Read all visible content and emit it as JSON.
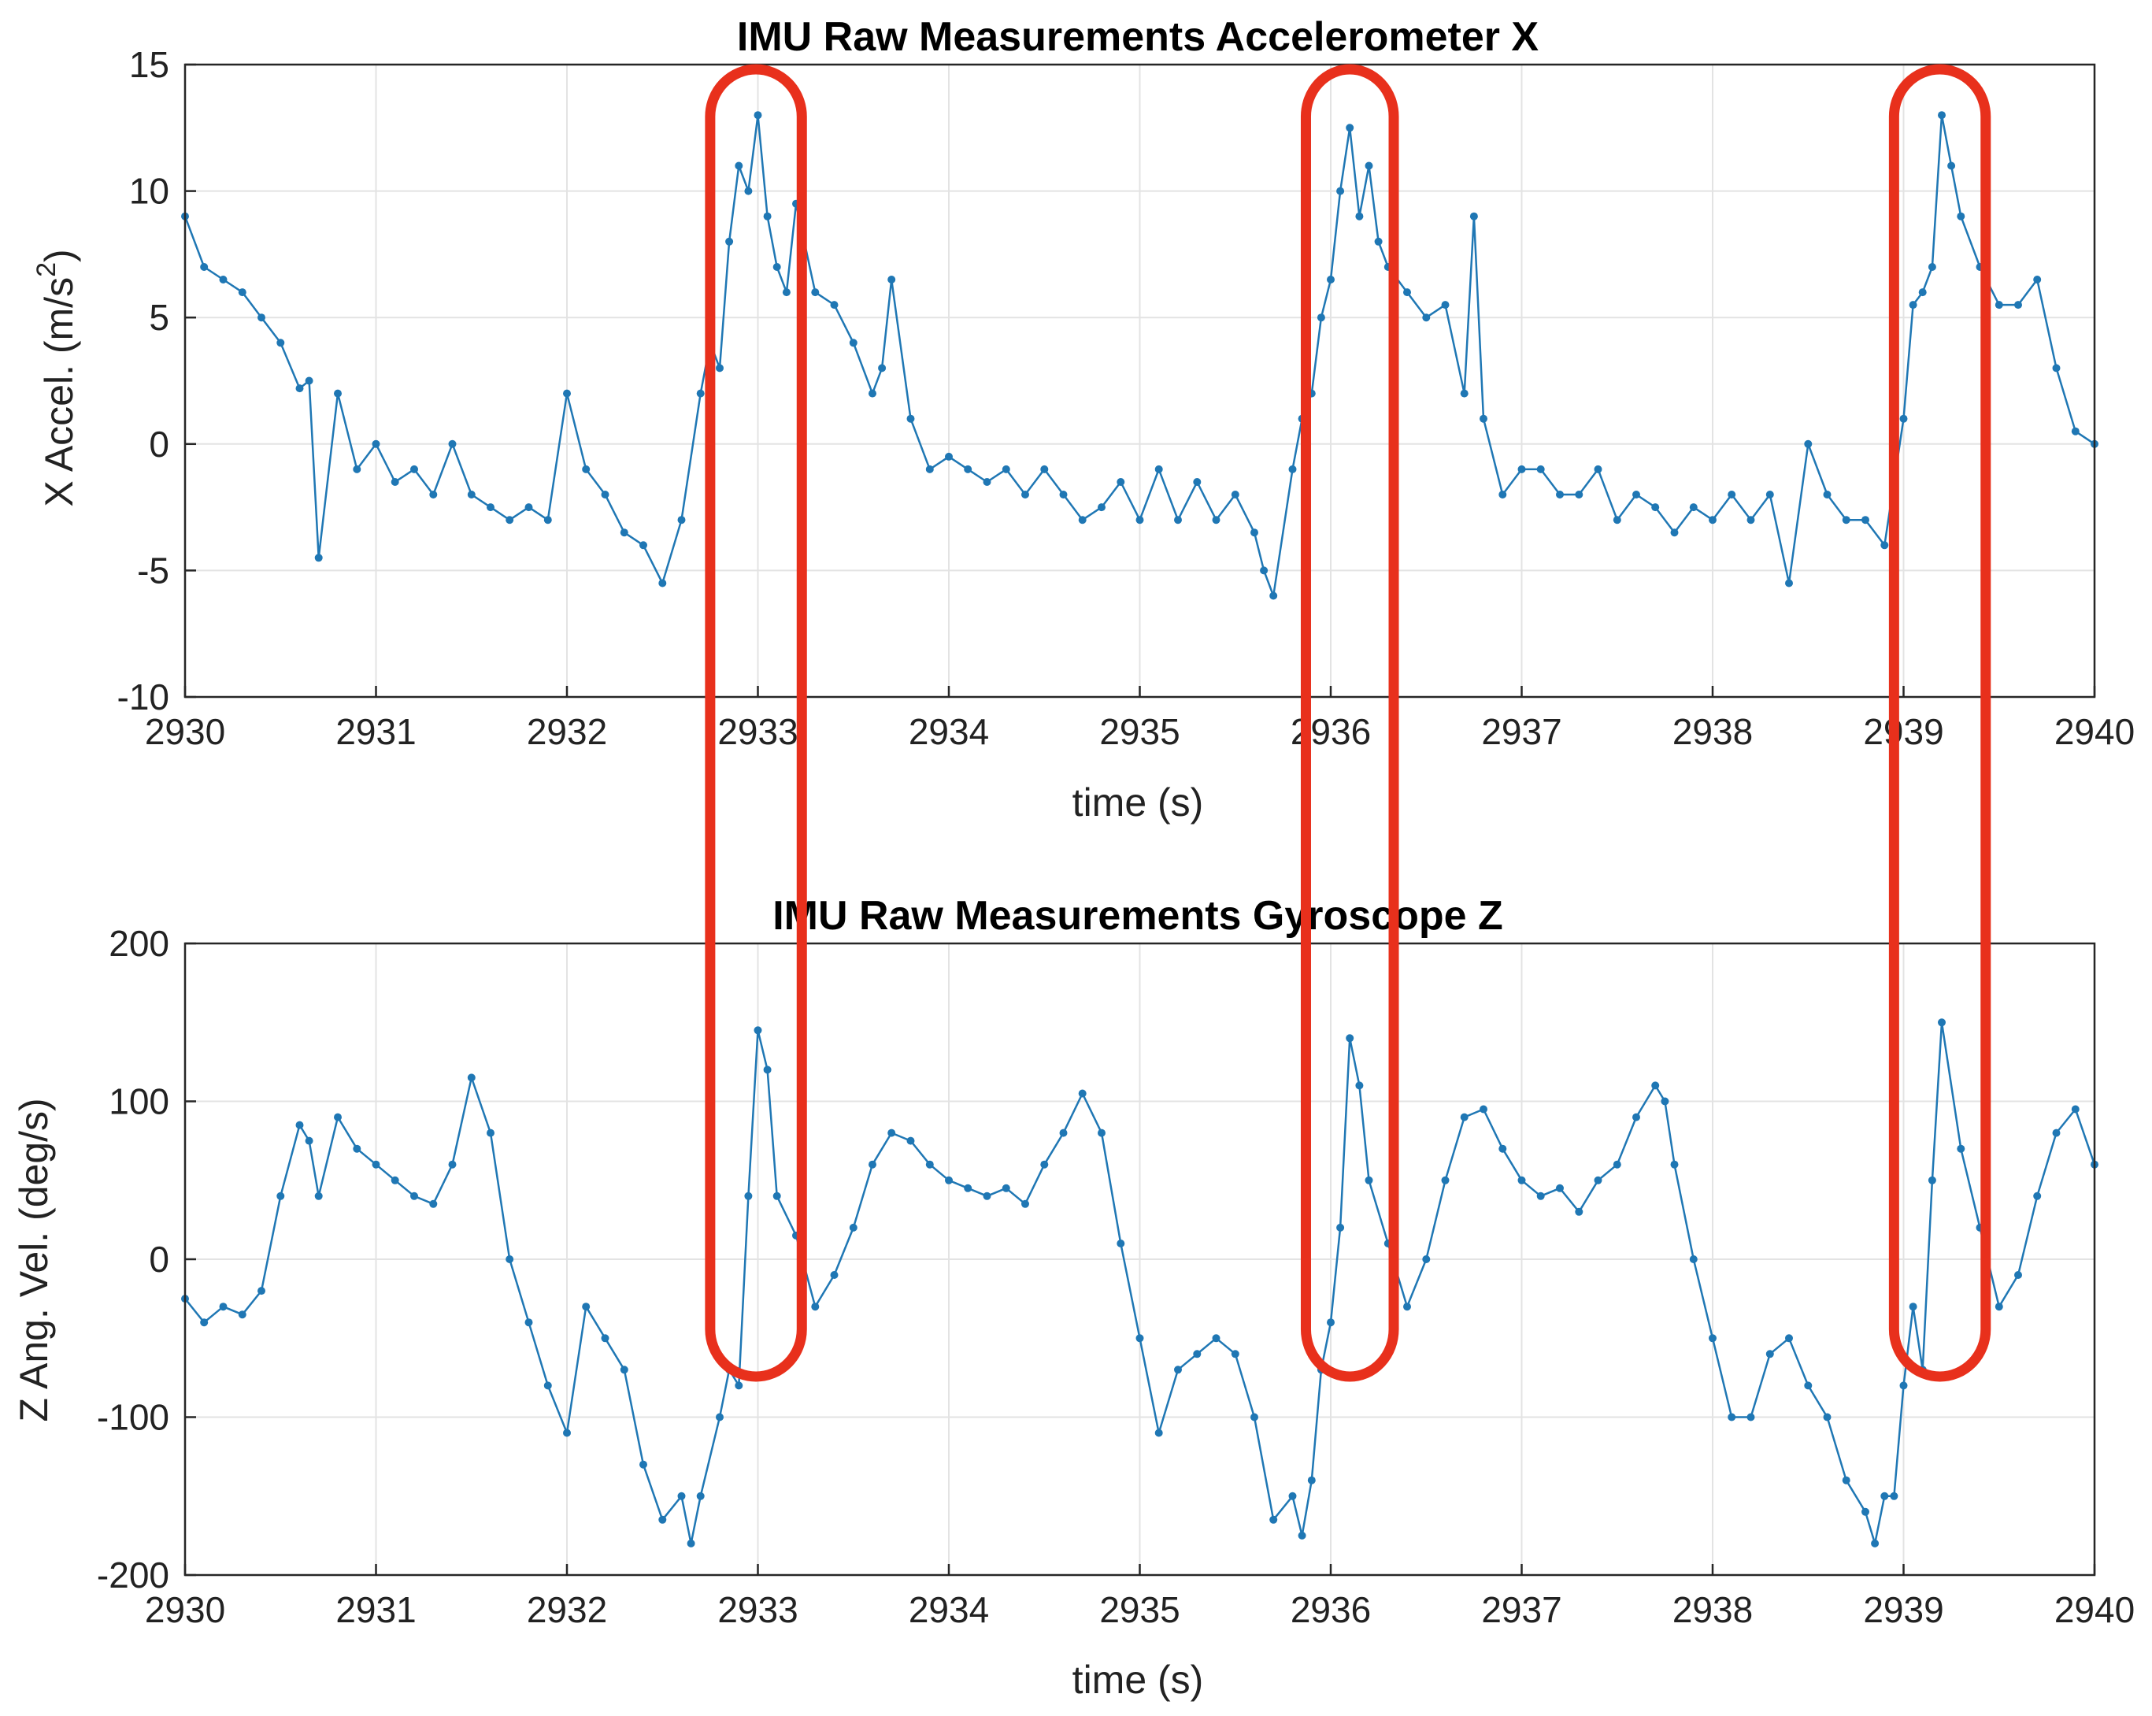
{
  "colors": {
    "series": "#1f77b4",
    "highlight": "#e8301c"
  },
  "chart_data": [
    {
      "type": "line",
      "title": "IMU Raw Measurements Accelerometer X",
      "xlabel": "time (s)",
      "ylabel_main": "X Accel. (m/s",
      "ylabel_sup": "2",
      "ylabel_end": ")",
      "xlim": [
        2930,
        2940
      ],
      "ylim": [
        -10,
        15
      ],
      "xticks": [
        2930,
        2931,
        2932,
        2933,
        2934,
        2935,
        2936,
        2937,
        2938,
        2939,
        2940
      ],
      "yticks": [
        -10,
        -5,
        0,
        5,
        10,
        15
      ],
      "grid": true,
      "markers": true,
      "series": [
        {
          "x": [
            2930.0,
            2930.1,
            2930.2,
            2930.3,
            2930.4,
            2930.5,
            2930.6,
            2930.65,
            2930.7,
            2930.8,
            2930.9,
            2931.0,
            2931.1,
            2931.2,
            2931.3,
            2931.4,
            2931.5,
            2931.6,
            2931.7,
            2931.8,
            2931.9,
            2932.0,
            2932.1,
            2932.2,
            2932.3,
            2932.4,
            2932.5,
            2932.6,
            2932.7,
            2932.75,
            2932.8,
            2932.85,
            2932.9,
            2932.95,
            2933.0,
            2933.05,
            2933.1,
            2933.15,
            2933.2,
            2933.3,
            2933.4,
            2933.5,
            2933.6,
            2933.65,
            2933.7,
            2933.8,
            2933.9,
            2934.0,
            2934.1,
            2934.2,
            2934.3,
            2934.4,
            2934.5,
            2934.6,
            2934.7,
            2934.8,
            2934.9,
            2935.0,
            2935.1,
            2935.2,
            2935.3,
            2935.4,
            2935.5,
            2935.6,
            2935.65,
            2935.7,
            2935.8,
            2935.85,
            2935.9,
            2935.95,
            2936.0,
            2936.05,
            2936.1,
            2936.15,
            2936.2,
            2936.25,
            2936.3,
            2936.4,
            2936.5,
            2936.6,
            2936.7,
            2936.75,
            2936.8,
            2936.9,
            2937.0,
            2937.1,
            2937.2,
            2937.3,
            2937.4,
            2937.5,
            2937.6,
            2937.7,
            2937.8,
            2937.9,
            2938.0,
            2938.1,
            2938.2,
            2938.3,
            2938.4,
            2938.5,
            2938.6,
            2938.7,
            2938.8,
            2938.9,
            2939.0,
            2939.05,
            2939.1,
            2939.15,
            2939.2,
            2939.25,
            2939.3,
            2939.4,
            2939.5,
            2939.6,
            2939.7,
            2939.8,
            2939.9,
            2940.0
          ],
          "y": [
            9,
            7,
            6.5,
            6,
            5,
            4,
            2.2,
            2.5,
            -4.5,
            2,
            -1,
            0,
            -1.5,
            -1,
            -2,
            0,
            -2,
            -2.5,
            -3,
            -2.5,
            -3,
            2,
            -1,
            -2,
            -3.5,
            -4,
            -5.5,
            -3,
            2,
            4,
            3,
            8,
            11,
            10,
            13,
            9,
            7,
            6,
            9.5,
            6,
            5.5,
            4,
            2,
            3,
            6.5,
            1,
            -1,
            -0.5,
            -1,
            -1.5,
            -1,
            -2,
            -1,
            -2,
            -3,
            -2.5,
            -1.5,
            -3,
            -1,
            -3,
            -1.5,
            -3,
            -2,
            -3.5,
            -5,
            -6,
            -1,
            1,
            2,
            5,
            6.5,
            10,
            12.5,
            9,
            11,
            8,
            7,
            6,
            5,
            5.5,
            2,
            9,
            1,
            -2,
            -1,
            -1,
            -2,
            -2,
            -1,
            -3,
            -2,
            -2.5,
            -3.5,
            -2.5,
            -3,
            -2,
            -3,
            -2,
            -5.5,
            0,
            -2,
            -3,
            -3,
            -4,
            1,
            5.5,
            6,
            7,
            13,
            11,
            9,
            7,
            5.5,
            5.5,
            6.5,
            3,
            0.5,
            0
          ]
        }
      ]
    },
    {
      "type": "line",
      "title": "IMU Raw Measurements Gyroscope Z",
      "xlabel": "time (s)",
      "ylabel_main": "Z Ang. Vel. (deg/s)",
      "xlim": [
        2930,
        2940
      ],
      "ylim": [
        -200,
        200
      ],
      "xticks": [
        2930,
        2931,
        2932,
        2933,
        2934,
        2935,
        2936,
        2937,
        2938,
        2939,
        2940
      ],
      "yticks": [
        -200,
        -100,
        0,
        100,
        200
      ],
      "grid": true,
      "markers": true,
      "series": [
        {
          "x": [
            2930.0,
            2930.1,
            2930.2,
            2930.3,
            2930.4,
            2930.5,
            2930.6,
            2930.65,
            2930.7,
            2930.8,
            2930.9,
            2931.0,
            2931.1,
            2931.2,
            2931.3,
            2931.4,
            2931.5,
            2931.6,
            2931.7,
            2931.8,
            2931.9,
            2932.0,
            2932.1,
            2932.2,
            2932.3,
            2932.4,
            2932.5,
            2932.6,
            2932.65,
            2932.7,
            2932.8,
            2932.85,
            2932.9,
            2932.95,
            2933.0,
            2933.05,
            2933.1,
            2933.2,
            2933.3,
            2933.4,
            2933.5,
            2933.6,
            2933.7,
            2933.8,
            2933.9,
            2934.0,
            2934.1,
            2934.2,
            2934.3,
            2934.4,
            2934.5,
            2934.6,
            2934.7,
            2934.8,
            2934.9,
            2935.0,
            2935.1,
            2935.2,
            2935.3,
            2935.4,
            2935.5,
            2935.6,
            2935.7,
            2935.8,
            2935.85,
            2935.9,
            2935.95,
            2936.0,
            2936.05,
            2936.1,
            2936.15,
            2936.2,
            2936.3,
            2936.4,
            2936.5,
            2936.6,
            2936.7,
            2936.8,
            2936.9,
            2937.0,
            2937.1,
            2937.2,
            2937.3,
            2937.4,
            2937.5,
            2937.6,
            2937.7,
            2937.75,
            2937.8,
            2937.9,
            2938.0,
            2938.1,
            2938.2,
            2938.3,
            2938.4,
            2938.5,
            2938.6,
            2938.7,
            2938.8,
            2938.85,
            2938.9,
            2938.95,
            2939.0,
            2939.05,
            2939.1,
            2939.15,
            2939.2,
            2939.3,
            2939.4,
            2939.5,
            2939.6,
            2939.7,
            2939.8,
            2939.9,
            2940.0
          ],
          "y": [
            -25,
            -40,
            -30,
            -35,
            -20,
            40,
            85,
            75,
            40,
            90,
            70,
            60,
            50,
            40,
            35,
            60,
            115,
            80,
            0,
            -40,
            -80,
            -110,
            -30,
            -50,
            -70,
            -130,
            -165,
            -150,
            -180,
            -150,
            -100,
            -70,
            -80,
            40,
            145,
            120,
            40,
            15,
            -30,
            -10,
            20,
            60,
            80,
            75,
            60,
            50,
            45,
            40,
            45,
            35,
            60,
            80,
            105,
            80,
            10,
            -50,
            -110,
            -70,
            -60,
            -50,
            -60,
            -100,
            -165,
            -150,
            -175,
            -140,
            -70,
            -40,
            20,
            140,
            110,
            50,
            10,
            -30,
            0,
            50,
            90,
            95,
            70,
            50,
            40,
            45,
            30,
            50,
            60,
            90,
            110,
            100,
            60,
            0,
            -50,
            -100,
            -100,
            -60,
            -50,
            -80,
            -100,
            -140,
            -160,
            -180,
            -150,
            -150,
            -80,
            -30,
            -70,
            50,
            150,
            70,
            20,
            -30,
            -10,
            40,
            80,
            95,
            60
          ]
        }
      ]
    }
  ],
  "highlights": [
    {
      "x_from": 2932.75,
      "x_to": 2933.23
    },
    {
      "x_from": 2935.87,
      "x_to": 2936.33
    },
    {
      "x_from": 2938.95,
      "x_to": 2939.43
    }
  ]
}
